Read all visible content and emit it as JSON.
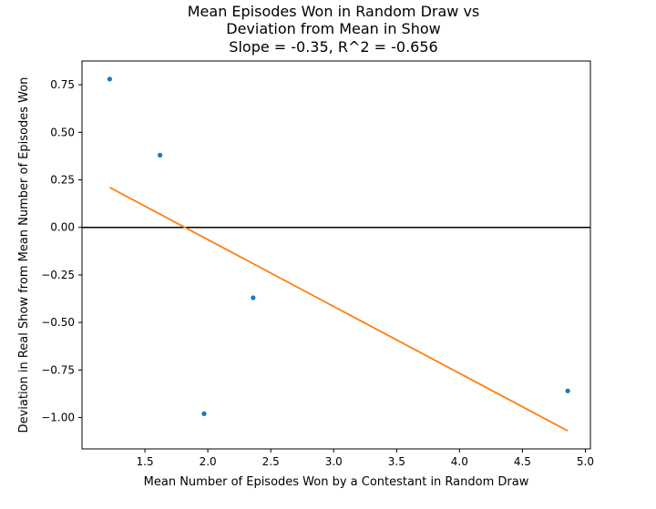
{
  "chart_data": {
    "type": "scatter",
    "title_lines": [
      "Mean Episodes Won in Random Draw vs",
      "Deviation from Mean in Show",
      "Slope = -0.35, R^2 = -0.656"
    ],
    "xlabel": "Mean Number of Episodes Won by a Contestant in Random Draw",
    "ylabel": "Deviation in Real Show from Mean Number of Episodes Won",
    "xlim": [
      1.0,
      5.04
    ],
    "ylim": [
      -1.165,
      0.875
    ],
    "x_ticks": [
      {
        "value": 1.5,
        "label": "1.5"
      },
      {
        "value": 2.0,
        "label": "2.0"
      },
      {
        "value": 2.5,
        "label": "2.5"
      },
      {
        "value": 3.0,
        "label": "3.0"
      },
      {
        "value": 3.5,
        "label": "3.5"
      },
      {
        "value": 4.0,
        "label": "4.0"
      },
      {
        "value": 4.5,
        "label": "4.5"
      },
      {
        "value": 5.0,
        "label": "5.0"
      }
    ],
    "y_ticks": [
      {
        "value": 0.75,
        "label": "0.75"
      },
      {
        "value": 0.5,
        "label": "0.50"
      },
      {
        "value": 0.25,
        "label": "0.25"
      },
      {
        "value": 0.0,
        "label": "0.00"
      },
      {
        "value": -0.25,
        "label": "−0.25"
      },
      {
        "value": -0.5,
        "label": "−0.50"
      },
      {
        "value": -0.75,
        "label": "−0.75"
      },
      {
        "value": -1.0,
        "label": "−1.00"
      }
    ],
    "points": [
      {
        "x": 1.22,
        "y": 0.78
      },
      {
        "x": 1.62,
        "y": 0.38
      },
      {
        "x": 1.97,
        "y": -0.98
      },
      {
        "x": 2.36,
        "y": -0.37
      },
      {
        "x": 4.86,
        "y": -0.86
      }
    ],
    "fit_line": {
      "x": [
        1.22,
        4.86
      ],
      "y": [
        0.21,
        -1.07
      ]
    },
    "reference_line": {
      "y": 0.0
    },
    "grid": false,
    "colors": {
      "points": "#1f77b4",
      "fit_line": "#ff7f0e",
      "reference_line": "#000000",
      "axes": "#000000"
    }
  }
}
